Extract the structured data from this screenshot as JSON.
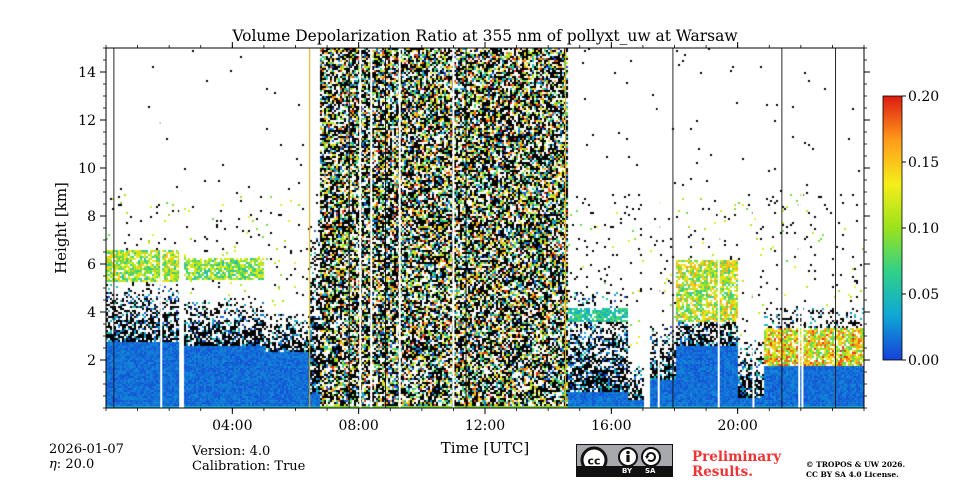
{
  "chart_data": {
    "type": "heatmap",
    "title": "Volume Depolarization Ratio at 355 nm of pollyxt_uw at Warsaw",
    "xlabel": "Time [UTC]",
    "ylabel": "Height [km]",
    "xlim_hours": [
      0,
      24
    ],
    "ylim_km": [
      0,
      15
    ],
    "x_ticks": [
      {
        "hour": 4,
        "label": "04:00"
      },
      {
        "hour": 8,
        "label": "08:00"
      },
      {
        "hour": 12,
        "label": "12:00"
      },
      {
        "hour": 16,
        "label": "16:00"
      },
      {
        "hour": 20,
        "label": "20:00"
      }
    ],
    "y_ticks": [
      {
        "value": 2,
        "label": "2"
      },
      {
        "value": 4,
        "label": "4"
      },
      {
        "value": 6,
        "label": "6"
      },
      {
        "value": 8,
        "label": "8"
      },
      {
        "value": 10,
        "label": "10"
      },
      {
        "value": 12,
        "label": "12"
      },
      {
        "value": 14,
        "label": "14"
      }
    ],
    "colorbar": {
      "range": [
        0.0,
        0.2
      ],
      "ticks": [
        {
          "value": 0.0,
          "label": "0.00"
        },
        {
          "value": 0.05,
          "label": "0.05"
        },
        {
          "value": 0.1,
          "label": "0.10"
        },
        {
          "value": 0.15,
          "label": "0.15"
        },
        {
          "value": 0.2,
          "label": "0.20"
        }
      ],
      "colors": [
        "#1740d8",
        "#0fa6d6",
        "#2fd08a",
        "#9be21c",
        "#f5ee1a",
        "#ff9b1a",
        "#dd1a10"
      ]
    },
    "profiles": [
      {
        "start": 0.0,
        "end": 2.3,
        "bl_top": 2.8,
        "noise_top": 5.2,
        "layer": [
          5.3,
          6.6,
          0.11
        ]
      },
      {
        "start": 2.3,
        "end": 2.45,
        "gap": true
      },
      {
        "start": 2.45,
        "end": 5.0,
        "bl_top": 2.6,
        "noise_top": 4.6,
        "layer": [
          5.4,
          6.3,
          0.1
        ]
      },
      {
        "start": 5.0,
        "end": 6.4,
        "bl_top": 2.4,
        "noise_top": 4.0,
        "layer": null
      },
      {
        "start": 6.4,
        "end": 6.75,
        "bl_top": 0.6,
        "noise_top": 8.0,
        "layer": null
      },
      {
        "start": 6.75,
        "end": 14.6,
        "daytime": true
      },
      {
        "start": 14.6,
        "end": 16.5,
        "bl_top": 0.7,
        "noise_top": 5.0,
        "layer": [
          3.6,
          4.2,
          0.06
        ]
      },
      {
        "start": 16.5,
        "end": 17.0,
        "bl_top": 0.4,
        "noise_top": 1.8,
        "layer": null
      },
      {
        "start": 17.0,
        "end": 17.2,
        "gap": true
      },
      {
        "start": 17.2,
        "end": 18.0,
        "bl_top": 1.2,
        "noise_top": 3.5,
        "layer": null
      },
      {
        "start": 18.0,
        "end": 20.0,
        "bl_top": 2.6,
        "noise_top": 5.2,
        "layer": [
          3.6,
          6.2,
          0.12
        ]
      },
      {
        "start": 20.0,
        "end": 20.8,
        "bl_top": 0.5,
        "noise_top": 3.0,
        "layer": null
      },
      {
        "start": 20.8,
        "end": 24.0,
        "bl_top": 1.8,
        "noise_top": 4.2,
        "layer": [
          1.8,
          3.4,
          0.14
        ]
      }
    ],
    "gap_hours": [
      0.25,
      1.75,
      2.35,
      7.7,
      8.05,
      8.4,
      8.85,
      9.3,
      11.0,
      11.4,
      17.1,
      17.5,
      17.95,
      19.4,
      20.5,
      21.4,
      21.95,
      22.05,
      23.1
    ],
    "valid_data_lines": [
      6.45,
      14.55
    ]
  },
  "footer": {
    "date": "2026-01-07",
    "eta_label": "η",
    "eta": "20.0",
    "version_label": "Version:",
    "version": "4.0",
    "calibration_label": "Calibration:",
    "calibration": "True",
    "preliminary_line1": "Preliminary",
    "preliminary_line2": "Results.",
    "copyright": "© TROPOS & UW 2026.",
    "license": "CC BY SA 4.0 License.",
    "cc_badge": {
      "by": "BY",
      "sa": "SA"
    }
  }
}
